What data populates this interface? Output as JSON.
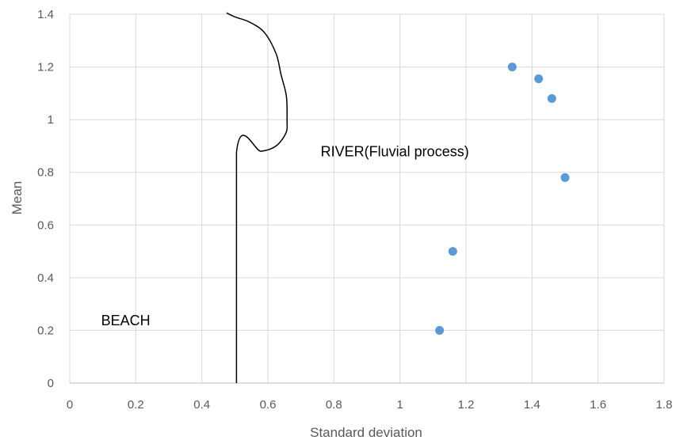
{
  "chart_data": {
    "type": "scatter",
    "title": "",
    "xlabel": "Standard deviation",
    "ylabel": "Mean",
    "xlim": [
      0,
      1.8
    ],
    "ylim": [
      0,
      1.4
    ],
    "x_ticks": [
      "0",
      "0.2",
      "0.4",
      "0.6",
      "0.8",
      "1",
      "1.2",
      "1.4",
      "1.6",
      "1.8"
    ],
    "y_ticks": [
      "0",
      "0.2",
      "0.4",
      "0.6",
      "0.8",
      "1",
      "1.2",
      "1.4"
    ],
    "grid": true,
    "legend": "none",
    "series": [
      {
        "color": "#5b9bd5",
        "points": [
          {
            "x": 1.34,
            "y": 1.2
          },
          {
            "x": 1.42,
            "y": 1.155
          },
          {
            "x": 1.46,
            "y": 1.08
          },
          {
            "x": 1.5,
            "y": 0.78
          },
          {
            "x": 1.16,
            "y": 0.5
          },
          {
            "x": 1.12,
            "y": 0.2
          }
        ]
      }
    ],
    "boundary_line": {
      "color": "#000000",
      "points": [
        {
          "x": 0.505,
          "y": 0
        },
        {
          "x": 0.505,
          "y": 0.875
        },
        {
          "x": 0.58,
          "y": 0.88
        },
        {
          "x": 0.625,
          "y": 0.9
        },
        {
          "x": 0.655,
          "y": 0.95
        },
        {
          "x": 0.658,
          "y": 1.0
        },
        {
          "x": 0.656,
          "y": 1.09
        },
        {
          "x": 0.64,
          "y": 1.17
        },
        {
          "x": 0.625,
          "y": 1.25
        },
        {
          "x": 0.59,
          "y": 1.33
        },
        {
          "x": 0.545,
          "y": 1.37
        },
        {
          "x": 0.5,
          "y": 1.39
        },
        {
          "x": 0.475,
          "y": 1.405
        }
      ]
    },
    "annotations": [
      {
        "id": "beach",
        "text": "BEACH",
        "x": 0.095,
        "y": 0.22
      },
      {
        "id": "river",
        "text": "RIVER(Fluvial process)",
        "x": 0.76,
        "y": 0.86
      }
    ]
  }
}
